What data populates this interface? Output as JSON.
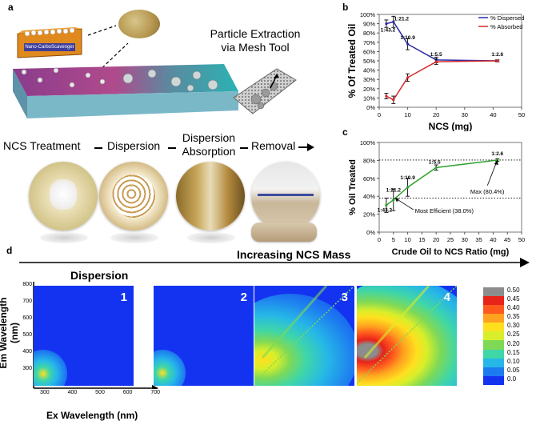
{
  "panel_a": {
    "letter": "a",
    "box_label": "Nano-CarboScavenger",
    "extraction_title": "Particle Extraction via Mesh Tool",
    "steps": [
      "NCS Treatment",
      "Dispersion",
      "Dispersion Absorption",
      "Removal"
    ]
  },
  "panel_b": {
    "letter": "b"
  },
  "panel_c": {
    "letter": "c"
  },
  "panel_d": {
    "letter": "d",
    "arrow_label": "Increasing NCS Mass",
    "label": "Dispersion",
    "ylabel": "Em Wavelength (nm)",
    "xlabel": "Ex Wavelength (nm)",
    "yticks": [
      "800",
      "700",
      "600",
      "500",
      "400",
      "300"
    ],
    "xticks": [
      "300",
      "400",
      "500",
      "600",
      "700"
    ],
    "panels": [
      "1",
      "2",
      "3",
      "4"
    ],
    "colorbar": [
      "0.50",
      "0.45",
      "0.40",
      "0.35",
      "0.30",
      "0.25",
      "0.20",
      "0.15",
      "0.10",
      "0.05",
      "0.0"
    ],
    "colorbar_colors": [
      "#8c8c8c",
      "#e8231a",
      "#ff5a1e",
      "#ffa21f",
      "#ffe01f",
      "#d8ee2a",
      "#7ed957",
      "#3fd6a8",
      "#26b7e8",
      "#1d7bf0",
      "#1433f0"
    ]
  },
  "chart_data": [
    {
      "type": "line",
      "xlabel": "NCS (mg)",
      "ylabel": "% Of Treated Oil",
      "xlim": [
        0,
        50
      ],
      "ylim": [
        0,
        100
      ],
      "xticks": [
        0,
        10,
        20,
        30,
        40,
        50
      ],
      "yticks": [
        "0%",
        "10%",
        "20%",
        "30%",
        "40%",
        "50%",
        "60%",
        "70%",
        "80%",
        "90%",
        "100%"
      ],
      "legend_position": "top-right",
      "series": [
        {
          "name": "% Dispersed",
          "color": "#2a2aa8",
          "x": [
            2.5,
            5,
            10,
            20,
            41.5
          ],
          "y": [
            90,
            92,
            68,
            51,
            50
          ],
          "err": [
            4,
            6,
            6,
            3,
            1
          ]
        },
        {
          "name": "% Absorbed",
          "color": "#d42a2a",
          "x": [
            2.5,
            5,
            10,
            20,
            41.5
          ],
          "y": [
            12,
            8,
            32,
            49,
            50
          ],
          "err": [
            3,
            4,
            4,
            3,
            1
          ]
        }
      ],
      "point_labels": [
        {
          "text": "1:43.2",
          "x": 2.5,
          "y": 90
        },
        {
          "text": "1:21.2",
          "x": 5,
          "y": 92
        },
        {
          "text": "1:10.9",
          "x": 10,
          "y": 68
        },
        {
          "text": "1:5.5",
          "x": 20,
          "y": 51
        },
        {
          "text": "1:2.6",
          "x": 41.5,
          "y": 50
        }
      ]
    },
    {
      "type": "line",
      "xlabel": "Crude Oil to NCS Ratio (mg)",
      "ylabel": "% Oil Treated",
      "xlim": [
        0,
        50
      ],
      "ylim": [
        0,
        100
      ],
      "xticks": [
        0,
        5,
        10,
        15,
        20,
        25,
        30,
        35,
        40,
        45,
        50
      ],
      "yticks": [
        "0%",
        "20%",
        "40%",
        "60%",
        "80%",
        "100%"
      ],
      "hlines": [
        38,
        80.4
      ],
      "series": [
        {
          "name": "",
          "color": "#2ea12e",
          "x": [
            2.5,
            5,
            10,
            20,
            41.5
          ],
          "y": [
            30,
            36,
            50,
            72,
            80.4
          ],
          "err": [
            8,
            12,
            10,
            3,
            1.5
          ]
        }
      ],
      "point_labels": [
        {
          "text": "1:43.2",
          "x": 2.5,
          "y": 30
        },
        {
          "text": "1:21.2",
          "x": 5,
          "y": 36
        },
        {
          "text": "1:10.9",
          "x": 10,
          "y": 50
        },
        {
          "text": "1:5.5",
          "x": 20,
          "y": 72
        },
        {
          "text": "1:2.6",
          "x": 41.5,
          "y": 80.4
        }
      ],
      "annotations": [
        "Most Efficient (38.0%)",
        "Max (80.4%)"
      ]
    }
  ]
}
